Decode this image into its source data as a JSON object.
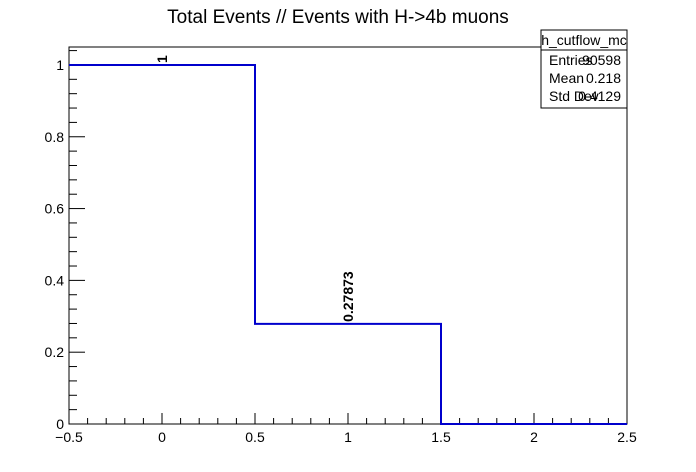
{
  "chart_data": {
    "type": "histogram",
    "title": "Total Events // Events with H->4b muons",
    "xlabel": "",
    "ylabel": "",
    "xlim": [
      -0.5,
      2.5
    ],
    "ylim": [
      0,
      1.05
    ],
    "bins": [
      {
        "low": -0.5,
        "high": 0.5,
        "center": 0,
        "value": 1,
        "label": "1"
      },
      {
        "low": 0.5,
        "high": 1.5,
        "center": 1,
        "value": 0.27873,
        "label": "0.27873"
      },
      {
        "low": 1.5,
        "high": 2.5,
        "center": 2,
        "value": 0,
        "label": ""
      }
    ],
    "x_ticks": [
      {
        "value": -0.5,
        "label": "−0.5"
      },
      {
        "value": 0,
        "label": "0"
      },
      {
        "value": 0.5,
        "label": "0.5"
      },
      {
        "value": 1,
        "label": "1"
      },
      {
        "value": 1.5,
        "label": "1.5"
      },
      {
        "value": 2,
        "label": "2"
      },
      {
        "value": 2.5,
        "label": "2.5"
      }
    ],
    "y_ticks": [
      {
        "value": 0,
        "label": "0"
      },
      {
        "value": 0.2,
        "label": "0.2"
      },
      {
        "value": 0.4,
        "label": "0.4"
      },
      {
        "value": 0.6,
        "label": "0.6"
      },
      {
        "value": 0.8,
        "label": "0.8"
      },
      {
        "value": 1,
        "label": "1"
      }
    ],
    "line_color": "#0000cc",
    "stats_box": {
      "name": "h_cutflow_mc",
      "rows": [
        {
          "label": "Entries",
          "value": "90598"
        },
        {
          "label": "Mean",
          "value": "0.218"
        },
        {
          "label": "Std Dev",
          "value": "0.4129"
        }
      ]
    }
  }
}
